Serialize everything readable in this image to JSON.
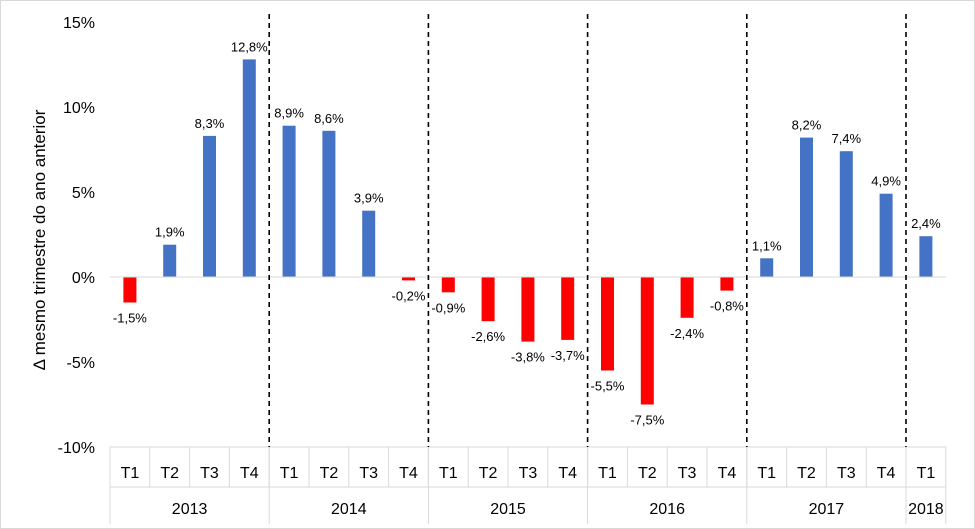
{
  "chart_data": {
    "type": "bar",
    "title": "",
    "xlabel": "",
    "ylabel": "Δ mesmo trimestre do ano anterior",
    "ylim": [
      -10,
      15
    ],
    "yticks": [
      -10,
      -5,
      0,
      5,
      10,
      15
    ],
    "ytick_labels": [
      "-10%",
      "-5%",
      "0%",
      "5%",
      "10%",
      "15%"
    ],
    "grid": false,
    "colors": {
      "positive": "#4472C4",
      "negative": "#FF0000"
    },
    "groups": [
      {
        "year": "2013",
        "quarters": [
          "T1",
          "T2",
          "T3",
          "T4"
        ],
        "values": [
          -1.5,
          1.9,
          8.3,
          12.8
        ],
        "labels": [
          "-1,5%",
          "1,9%",
          "8,3%",
          "12,8%"
        ]
      },
      {
        "year": "2014",
        "quarters": [
          "T1",
          "T2",
          "T3",
          "T4"
        ],
        "values": [
          8.9,
          8.6,
          3.9,
          -0.2
        ],
        "labels": [
          "8,9%",
          "8,6%",
          "3,9%",
          "-0,2%"
        ]
      },
      {
        "year": "2015",
        "quarters": [
          "T1",
          "T2",
          "T3",
          "T4"
        ],
        "values": [
          -0.9,
          -2.6,
          -3.8,
          -3.7
        ],
        "labels": [
          "-0,9%",
          "-2,6%",
          "-3,8%",
          "-3,7%"
        ]
      },
      {
        "year": "2016",
        "quarters": [
          "T1",
          "T2",
          "T3",
          "T4"
        ],
        "values": [
          -5.5,
          -7.5,
          -2.4,
          -0.8
        ],
        "labels": [
          "-5,5%",
          "-7,5%",
          "-2,4%",
          "-0,8%"
        ]
      },
      {
        "year": "2017",
        "quarters": [
          "T1",
          "T2",
          "T3",
          "T4"
        ],
        "values": [
          1.1,
          8.2,
          7.4,
          4.9
        ],
        "labels": [
          "1,1%",
          "8,2%",
          "7,4%",
          "4,9%"
        ]
      },
      {
        "year": "2018",
        "quarters": [
          "T1"
        ],
        "values": [
          2.4
        ],
        "labels": [
          "2,4%"
        ]
      }
    ]
  }
}
